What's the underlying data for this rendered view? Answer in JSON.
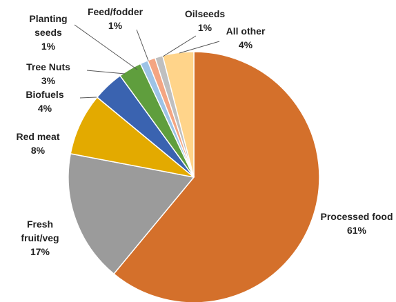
{
  "chart_data": {
    "type": "pie",
    "categories": [
      "Processed food",
      "Fresh fruit/veg",
      "Red meat",
      "Biofuels",
      "Tree Nuts",
      "Planting seeds",
      "Feed/fodder",
      "Oilseeds",
      "All other"
    ],
    "values": [
      61,
      17,
      8,
      4,
      3,
      1,
      1,
      1,
      4
    ],
    "value_labels": [
      "61%",
      "17%",
      "8%",
      "4%",
      "3%",
      "1%",
      "1%",
      "1%",
      "4%"
    ],
    "colors": [
      "#d4702b",
      "#9b9b9b",
      "#e3aa00",
      "#3a63b0",
      "#5f9e3d",
      "#9dc3e6",
      "#f4a582",
      "#bfbfbf",
      "#ffd48a"
    ]
  }
}
